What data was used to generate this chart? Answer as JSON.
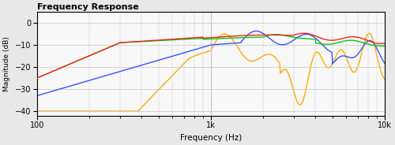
{
  "title": "Frequency Response",
  "xlabel": "Frequency (Hz)",
  "ylabel": "Magnitude (dB)",
  "ylim": [
    -42,
    5
  ],
  "xlim": [
    100,
    10000
  ],
  "yticks": [
    0,
    -10,
    -20,
    -30,
    -40
  ],
  "bg_color": "#e8e8e8",
  "plot_bg_color": "#f8f8f8",
  "grid_color": "#cccccc",
  "colors": {
    "0deg": "#ff2020",
    "30deg": "#00cc00",
    "60deg": "#3355ff",
    "90deg": "#ffaa00"
  },
  "line_width": 1.0
}
